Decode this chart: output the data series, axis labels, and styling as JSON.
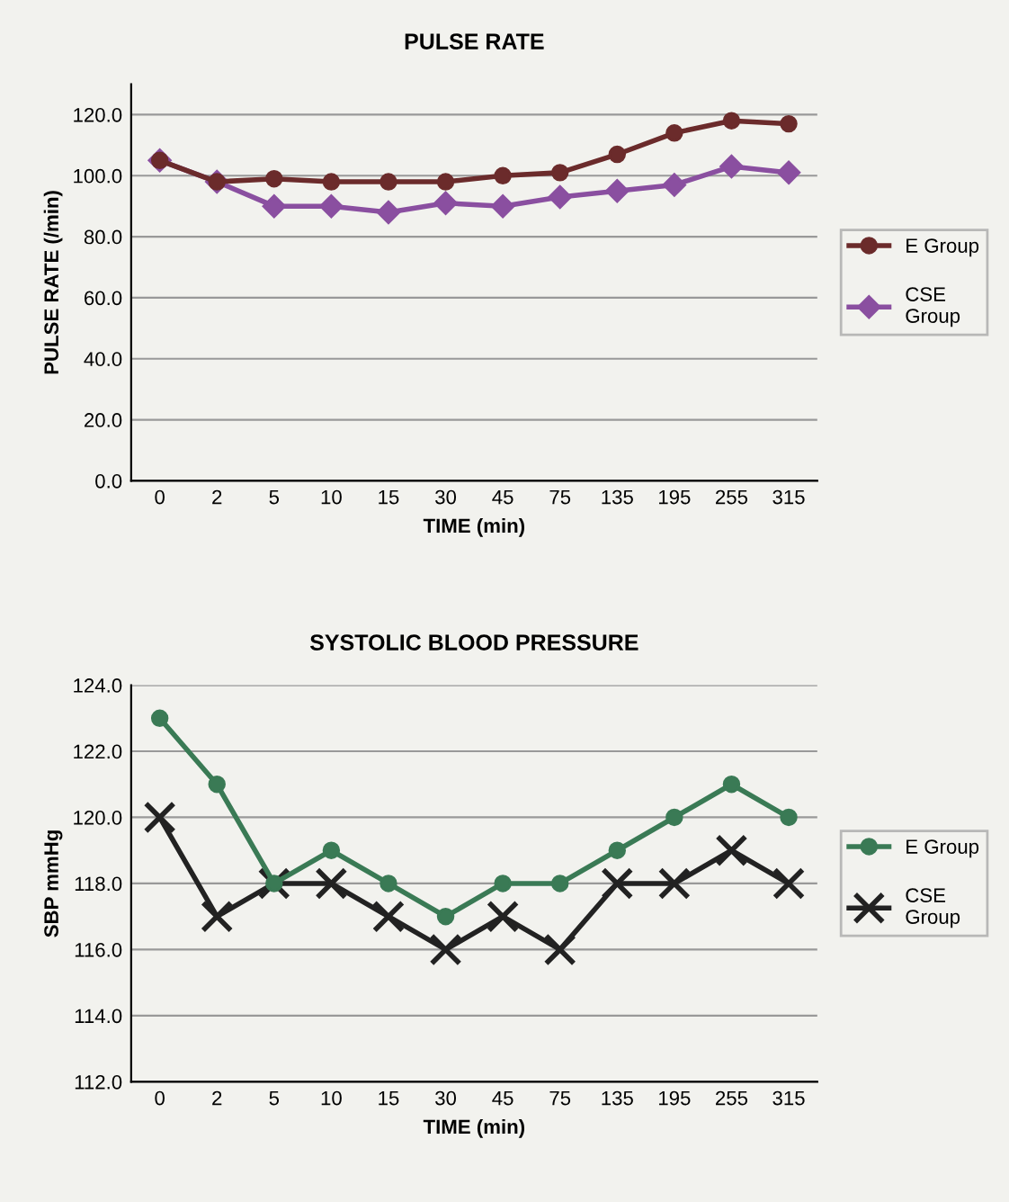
{
  "chart_data": [
    {
      "type": "line",
      "title": "PULSE RATE",
      "xlabel": "TIME (min)",
      "ylabel": "PULSE RATE (/min)",
      "categories": [
        "0",
        "2",
        "5",
        "10",
        "15",
        "30",
        "45",
        "75",
        "135",
        "195",
        "255",
        "315"
      ],
      "series": [
        {
          "name": "E Group",
          "color": "#6b2b2b",
          "marker": "circle",
          "values": [
            105,
            98,
            99,
            98,
            98,
            98,
            100,
            101,
            107,
            114,
            118,
            117
          ]
        },
        {
          "name": "CSE Group",
          "color": "#8a4fa0",
          "marker": "diamond",
          "values": [
            105,
            98,
            90,
            90,
            88,
            91,
            90,
            93,
            95,
            97,
            103,
            101
          ]
        }
      ],
      "ylim": [
        0,
        130
      ],
      "yticks": [
        {
          "value": 0,
          "label": "0.0"
        },
        {
          "value": 20,
          "label": "20.0"
        },
        {
          "value": 40,
          "label": "40.0"
        },
        {
          "value": 60,
          "label": "60.0"
        },
        {
          "value": 80,
          "label": "80.0"
        },
        {
          "value": 100,
          "label": "100.0"
        },
        {
          "value": 120,
          "label": "120.0"
        }
      ],
      "grid": "y",
      "legend": "right"
    },
    {
      "type": "line",
      "title": "SYSTOLIC BLOOD PRESSURE",
      "xlabel": "TIME (min)",
      "ylabel": "SBP mmHg",
      "categories": [
        "0",
        "2",
        "5",
        "10",
        "15",
        "30",
        "45",
        "75",
        "135",
        "195",
        "255",
        "315"
      ],
      "series": [
        {
          "name": "E Group",
          "color": "#3a7a55",
          "marker": "circle",
          "values": [
            123,
            121,
            118,
            119,
            118,
            117,
            118,
            118,
            119,
            120,
            121,
            120
          ]
        },
        {
          "name": "CSE Group",
          "color": "#222222",
          "marker": "cross",
          "values": [
            120,
            117,
            118,
            118,
            117,
            116,
            117,
            116,
            118,
            118,
            119,
            118
          ]
        }
      ],
      "ylim": [
        112,
        124
      ],
      "yticks": [
        {
          "value": 112,
          "label": "112.0"
        },
        {
          "value": 114,
          "label": "114.0"
        },
        {
          "value": 116,
          "label": "116.0"
        },
        {
          "value": 118,
          "label": "118.0"
        },
        {
          "value": 120,
          "label": "120.0"
        },
        {
          "value": 122,
          "label": "122.0"
        },
        {
          "value": 124,
          "label": "124.0"
        }
      ],
      "grid": "y",
      "legend": "right"
    }
  ]
}
